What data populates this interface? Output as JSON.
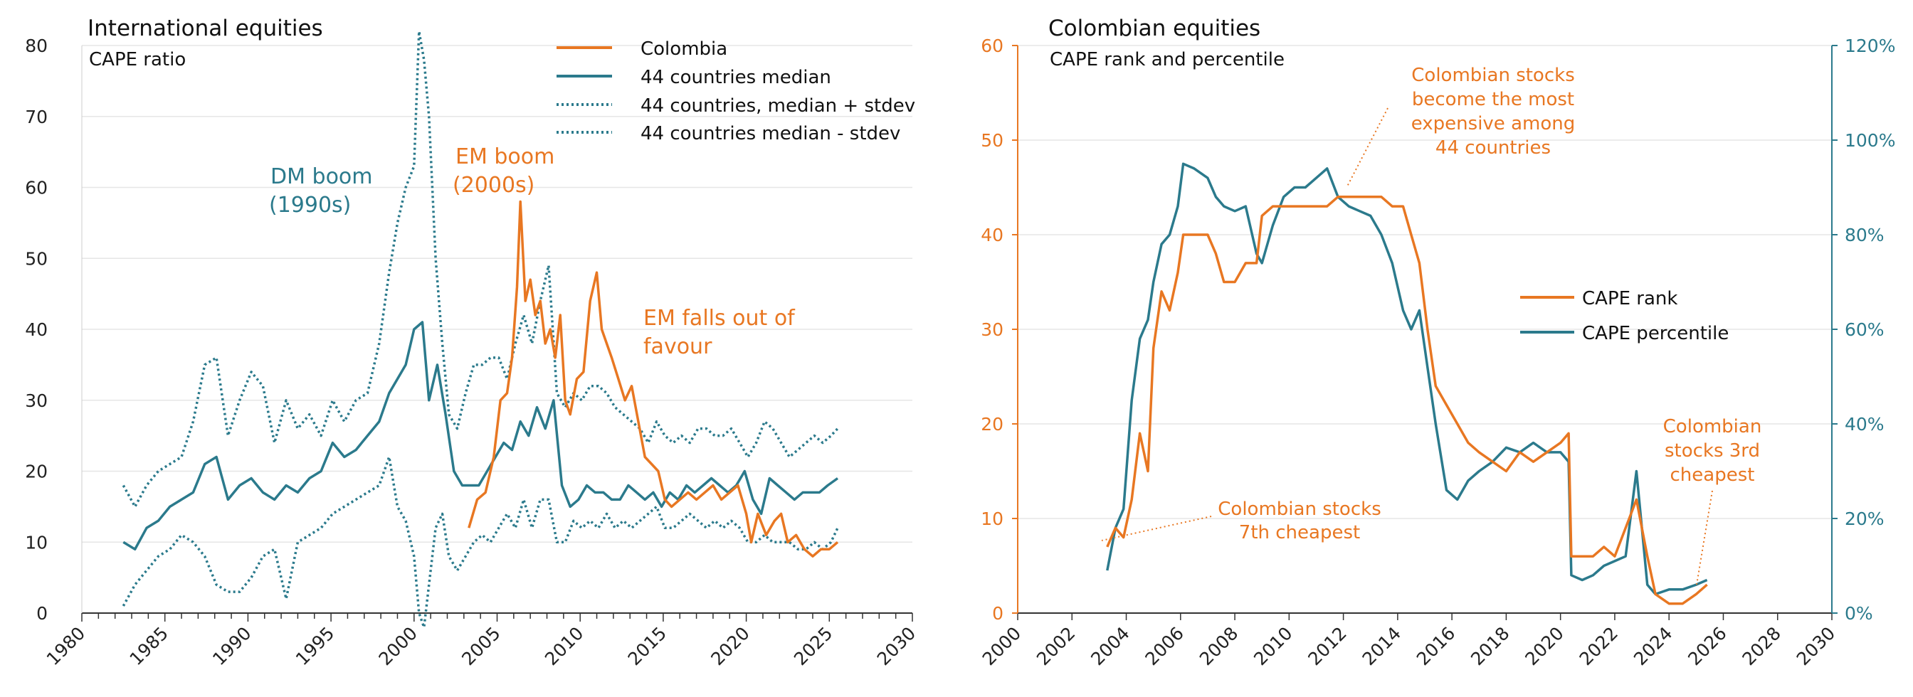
{
  "colors": {
    "orange": "#e87722",
    "teal": "#2b7a8c",
    "grid": "#e6e6e6",
    "axis": "#333333"
  },
  "chart_data": [
    {
      "type": "line",
      "title": "International equities",
      "subtitle": "CAPE ratio",
      "xlim": [
        1980,
        2030
      ],
      "ylim": [
        0,
        80
      ],
      "x_ticks": [
        "1980",
        "1985",
        "1990",
        "1995",
        "2000",
        "2005",
        "2010",
        "2015",
        "2020",
        "2025",
        "2030"
      ],
      "y_ticks": [
        "0",
        "10",
        "20",
        "30",
        "40",
        "50",
        "60",
        "70",
        "80"
      ],
      "grid": true,
      "legend_position": "top-right",
      "series": [
        {
          "name": "Colombia",
          "style": "solid",
          "color": "#e87722",
          "x": [
            2003.3,
            2003.8,
            2004.3,
            2004.8,
            2005.2,
            2005.6,
            2005.9,
            2006.2,
            2006.4,
            2006.7,
            2007.0,
            2007.3,
            2007.6,
            2007.9,
            2008.2,
            2008.5,
            2008.8,
            2009.1,
            2009.4,
            2009.8,
            2010.2,
            2010.6,
            2011.0,
            2011.3,
            2011.6,
            2011.9,
            2012.3,
            2012.7,
            2013.1,
            2013.5,
            2013.9,
            2014.3,
            2014.7,
            2015.1,
            2015.5,
            2016.0,
            2016.5,
            2017.0,
            2017.5,
            2018.0,
            2018.5,
            2019.0,
            2019.5,
            2020.0,
            2020.3,
            2020.7,
            2021.2,
            2021.7,
            2022.1,
            2022.5,
            2023.0,
            2023.5,
            2024.0,
            2024.5,
            2025.0,
            2025.5
          ],
          "y": [
            12,
            16,
            17,
            22,
            30,
            31,
            36,
            46,
            58,
            44,
            47,
            42,
            44,
            38,
            40,
            36,
            42,
            30,
            28,
            33,
            34,
            44,
            48,
            40,
            38,
            36,
            33,
            30,
            32,
            27,
            22,
            21,
            20,
            16,
            15,
            16,
            17,
            16,
            17,
            18,
            16,
            17,
            18,
            14,
            10,
            14,
            11,
            13,
            14,
            10,
            11,
            9,
            8,
            9,
            9,
            10
          ]
        },
        {
          "name": "44 countries median",
          "style": "solid",
          "color": "#2b7a8c",
          "x": [
            1982.5,
            1983.2,
            1983.9,
            1984.6,
            1985.3,
            1986.0,
            1986.7,
            1987.4,
            1988.1,
            1988.8,
            1989.5,
            1990.2,
            1990.9,
            1991.6,
            1992.3,
            1993.0,
            1993.7,
            1994.4,
            1995.1,
            1995.8,
            1996.5,
            1997.2,
            1997.9,
            1998.5,
            1999.0,
            1999.5,
            2000.0,
            2000.5,
            2000.9,
            2001.4,
            2001.9,
            2002.4,
            2002.9,
            2003.4,
            2003.9,
            2004.4,
            2004.9,
            2005.4,
            2005.9,
            2006.4,
            2006.9,
            2007.4,
            2007.9,
            2008.4,
            2008.9,
            2009.4,
            2009.9,
            2010.4,
            2010.9,
            2011.4,
            2011.9,
            2012.4,
            2012.9,
            2013.4,
            2013.9,
            2014.4,
            2014.9,
            2015.4,
            2015.9,
            2016.4,
            2016.9,
            2017.4,
            2017.9,
            2018.4,
            2018.9,
            2019.4,
            2019.9,
            2020.4,
            2020.9,
            2021.4,
            2021.9,
            2022.4,
            2022.9,
            2023.4,
            2023.9,
            2024.4,
            2024.9,
            2025.5
          ],
          "y": [
            10,
            9,
            12,
            13,
            15,
            16,
            17,
            21,
            22,
            16,
            18,
            19,
            17,
            16,
            18,
            17,
            19,
            20,
            24,
            22,
            23,
            25,
            27,
            31,
            33,
            35,
            40,
            41,
            30,
            35,
            28,
            20,
            18,
            18,
            18,
            20,
            22,
            24,
            23,
            27,
            25,
            29,
            26,
            30,
            18,
            15,
            16,
            18,
            17,
            17,
            16,
            16,
            18,
            17,
            16,
            17,
            15,
            17,
            16,
            18,
            17,
            18,
            19,
            18,
            17,
            18,
            20,
            16,
            14,
            19,
            18,
            17,
            16,
            17,
            17,
            17,
            18,
            19
          ]
        },
        {
          "name": "44 countries, median + stdev",
          "style": "dotted",
          "color": "#2b7a8c",
          "x": [
            1982.5,
            1983.2,
            1983.9,
            1984.6,
            1985.3,
            1986.0,
            1986.7,
            1987.4,
            1988.1,
            1988.8,
            1989.5,
            1990.2,
            1990.9,
            1991.6,
            1992.3,
            1993.0,
            1993.7,
            1994.4,
            1995.1,
            1995.8,
            1996.5,
            1997.2,
            1997.9,
            1998.5,
            1999.0,
            1999.5,
            2000.0,
            2000.3,
            2000.6,
            2000.9,
            2001.3,
            2001.7,
            2002.1,
            2002.6,
            2003.1,
            2003.6,
            2004.1,
            2004.6,
            2005.1,
            2005.6,
            2006.1,
            2006.6,
            2007.1,
            2007.6,
            2008.1,
            2008.6,
            2009.1,
            2009.6,
            2010.1,
            2010.6,
            2011.1,
            2011.6,
            2012.1,
            2012.6,
            2013.1,
            2013.6,
            2014.1,
            2014.6,
            2015.1,
            2015.6,
            2016.1,
            2016.6,
            2017.1,
            2017.6,
            2018.1,
            2018.6,
            2019.1,
            2019.6,
            2020.1,
            2020.6,
            2021.1,
            2021.6,
            2022.1,
            2022.6,
            2023.1,
            2023.6,
            2024.1,
            2024.6,
            2025.1,
            2025.5
          ],
          "y": [
            18,
            15,
            18,
            20,
            21,
            22,
            27,
            35,
            36,
            25,
            30,
            34,
            32,
            24,
            30,
            26,
            28,
            25,
            30,
            27,
            30,
            31,
            38,
            48,
            55,
            60,
            63,
            82,
            78,
            70,
            50,
            38,
            28,
            26,
            31,
            35,
            35,
            36,
            36,
            33,
            38,
            42,
            38,
            44,
            49,
            31,
            29,
            31,
            30,
            32,
            32,
            31,
            29,
            28,
            27,
            26,
            24,
            27,
            25,
            24,
            25,
            24,
            26,
            26,
            25,
            25,
            26,
            24,
            22,
            24,
            27,
            26,
            24,
            22,
            23,
            24,
            25,
            24,
            25,
            26
          ]
        },
        {
          "name": "44 countries median - stdev",
          "style": "dotted",
          "color": "#2b7a8c",
          "x": [
            1982.5,
            1983.2,
            1983.9,
            1984.6,
            1985.3,
            1986.0,
            1986.7,
            1987.4,
            1988.1,
            1988.8,
            1989.5,
            1990.2,
            1990.9,
            1991.6,
            1992.3,
            1993.0,
            1993.7,
            1994.4,
            1995.1,
            1995.8,
            1996.5,
            1997.2,
            1997.9,
            1998.5,
            1999.0,
            1999.5,
            2000.0,
            2000.3,
            2000.6,
            2000.9,
            2001.3,
            2001.7,
            2002.1,
            2002.6,
            2003.1,
            2003.6,
            2004.1,
            2004.6,
            2005.1,
            2005.6,
            2006.1,
            2006.6,
            2007.1,
            2007.6,
            2008.1,
            2008.6,
            2009.1,
            2009.6,
            2010.1,
            2010.6,
            2011.1,
            2011.6,
            2012.1,
            2012.6,
            2013.1,
            2013.6,
            2014.1,
            2014.6,
            2015.1,
            2015.6,
            2016.1,
            2016.6,
            2017.1,
            2017.6,
            2018.1,
            2018.6,
            2019.1,
            2019.6,
            2020.1,
            2020.6,
            2021.1,
            2021.6,
            2022.1,
            2022.6,
            2023.1,
            2023.6,
            2024.1,
            2024.6,
            2025.1,
            2025.5
          ],
          "y": [
            1,
            4,
            6,
            8,
            9,
            11,
            10,
            8,
            4,
            3,
            3,
            5,
            8,
            9,
            2,
            10,
            11,
            12,
            14,
            15,
            16,
            17,
            18,
            22,
            15,
            13,
            8,
            0,
            -2,
            4,
            12,
            14,
            8,
            6,
            8,
            10,
            11,
            10,
            12,
            14,
            12,
            16,
            12,
            16,
            16,
            10,
            10,
            13,
            12,
            13,
            12,
            14,
            12,
            13,
            12,
            13,
            14,
            15,
            12,
            12,
            13,
            14,
            13,
            12,
            13,
            12,
            13,
            12,
            10,
            10,
            11,
            10,
            10,
            10,
            9,
            9,
            10,
            9,
            10,
            12
          ]
        }
      ],
      "annotations": [
        {
          "lines": [
            "DM boom",
            "(1990s)"
          ],
          "color": "teal"
        },
        {
          "lines": [
            "EM boom",
            "(2000s)"
          ],
          "color": "orange"
        },
        {
          "lines": [
            "EM falls out of",
            "favour"
          ],
          "color": "orange"
        }
      ]
    },
    {
      "type": "line",
      "title": "Colombian equities",
      "subtitle": "CAPE rank and percentile",
      "xlim": [
        2000,
        2030
      ],
      "ylim_left": [
        0,
        60
      ],
      "ylim_right": [
        0,
        120
      ],
      "x_ticks": [
        "2000",
        "2002",
        "2004",
        "2006",
        "2008",
        "2010",
        "2012",
        "2014",
        "2016",
        "2018",
        "2020",
        "2022",
        "2024",
        "2026",
        "2028",
        "2030"
      ],
      "y_ticks_left": [
        "0",
        "10",
        "20",
        "30",
        "40",
        "50",
        "60"
      ],
      "y_ticks_right": [
        "0%",
        "20%",
        "40%",
        "60%",
        "80%",
        "100%",
        "120%"
      ],
      "grid": true,
      "legend_position": "center-right",
      "series": [
        {
          "name": "CAPE rank",
          "axis": "left",
          "color": "#e87722",
          "x": [
            2003.3,
            2003.6,
            2003.9,
            2004.2,
            2004.5,
            2004.8,
            2005.0,
            2005.3,
            2005.6,
            2005.9,
            2006.1,
            2006.5,
            2007.0,
            2007.3,
            2007.6,
            2008.0,
            2008.4,
            2008.8,
            2009.0,
            2009.4,
            2009.8,
            2010.2,
            2010.6,
            2011.0,
            2011.4,
            2011.8,
            2012.2,
            2012.6,
            2013.0,
            2013.4,
            2013.8,
            2014.2,
            2014.5,
            2014.8,
            2015.1,
            2015.4,
            2015.8,
            2016.2,
            2016.6,
            2017.0,
            2017.5,
            2018.0,
            2018.5,
            2019.0,
            2019.5,
            2020.0,
            2020.3,
            2020.4,
            2020.8,
            2021.2,
            2021.6,
            2022.0,
            2022.4,
            2022.8,
            2023.2,
            2023.5,
            2024.0,
            2024.5,
            2025.0,
            2025.4
          ],
          "y": [
            7,
            9,
            8,
            12,
            19,
            15,
            28,
            34,
            32,
            36,
            40,
            40,
            40,
            38,
            35,
            35,
            37,
            37,
            42,
            43,
            43,
            43,
            43,
            43,
            43,
            44,
            44,
            44,
            44,
            44,
            43,
            43,
            40,
            37,
            30,
            24,
            22,
            20,
            18,
            17,
            16,
            15,
            17,
            16,
            17,
            18,
            19,
            6,
            6,
            6,
            7,
            6,
            9,
            12,
            6,
            2,
            1,
            1,
            2,
            3
          ]
        },
        {
          "name": "CAPE percentile",
          "axis": "right",
          "color": "#2b7a8c",
          "x": [
            2003.3,
            2003.6,
            2003.9,
            2004.2,
            2004.5,
            2004.8,
            2005.0,
            2005.3,
            2005.6,
            2005.9,
            2006.1,
            2006.5,
            2007.0,
            2007.3,
            2007.6,
            2008.0,
            2008.4,
            2008.8,
            2009.0,
            2009.4,
            2009.8,
            2010.2,
            2010.6,
            2011.0,
            2011.4,
            2011.8,
            2012.2,
            2012.6,
            2013.0,
            2013.4,
            2013.8,
            2014.2,
            2014.5,
            2014.8,
            2015.1,
            2015.4,
            2015.8,
            2016.2,
            2016.6,
            2017.0,
            2017.5,
            2018.0,
            2018.5,
            2019.0,
            2019.5,
            2020.0,
            2020.3,
            2020.4,
            2020.8,
            2021.2,
            2021.6,
            2022.0,
            2022.4,
            2022.8,
            2023.2,
            2023.5,
            2024.0,
            2024.5,
            2025.0,
            2025.4
          ],
          "y": [
            9,
            18,
            22,
            45,
            58,
            62,
            70,
            78,
            80,
            86,
            95,
            94,
            92,
            88,
            86,
            85,
            86,
            76,
            74,
            82,
            88,
            90,
            90,
            92,
            94,
            88,
            86,
            85,
            84,
            80,
            74,
            64,
            60,
            64,
            52,
            40,
            26,
            24,
            28,
            30,
            32,
            35,
            34,
            36,
            34,
            34,
            32,
            8,
            7,
            8,
            10,
            11,
            12,
            30,
            6,
            4,
            5,
            5,
            6,
            7
          ]
        }
      ],
      "annotations": [
        {
          "lines": [
            "Colombian stocks",
            "become the most",
            "expensive among",
            "44 countries"
          ]
        },
        {
          "lines": [
            "Colombian stocks",
            "7th cheapest"
          ]
        },
        {
          "lines": [
            "Colombian",
            "stocks 3rd",
            "cheapest"
          ]
        }
      ]
    }
  ]
}
